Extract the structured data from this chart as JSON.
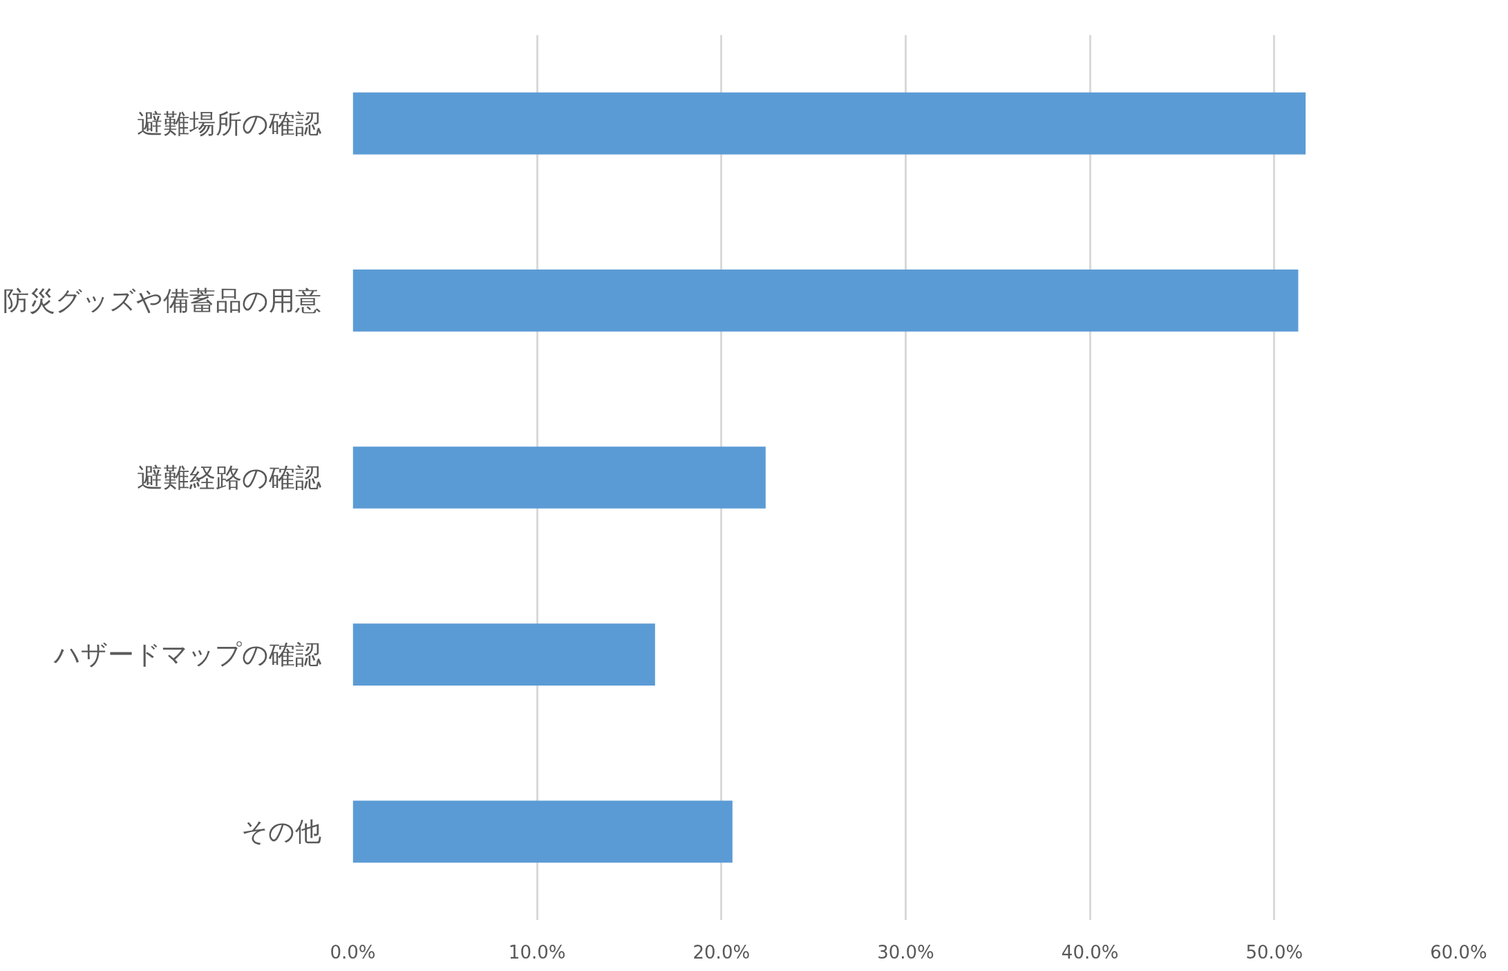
{
  "chart_data": {
    "type": "bar",
    "orientation": "horizontal",
    "categories": [
      "避難場所の確認",
      "防災グッズや備蓄品の用意",
      "避難経路の確認",
      "ハザードマップの確認",
      "その他"
    ],
    "values": [
      51.7,
      51.3,
      22.4,
      16.4,
      20.6
    ],
    "color": "#5b9bd5",
    "xlim": [
      0,
      60
    ],
    "xticks": [
      {
        "value": 0,
        "label": "0.0%"
      },
      {
        "value": 10,
        "label": "10.0%"
      },
      {
        "value": 20,
        "label": "20.0%"
      },
      {
        "value": 30,
        "label": "30.0%"
      },
      {
        "value": 40,
        "label": "40.0%"
      },
      {
        "value": 50,
        "label": "50.0%"
      },
      {
        "value": 60,
        "label": "60.0%"
      }
    ],
    "grid": "x"
  }
}
